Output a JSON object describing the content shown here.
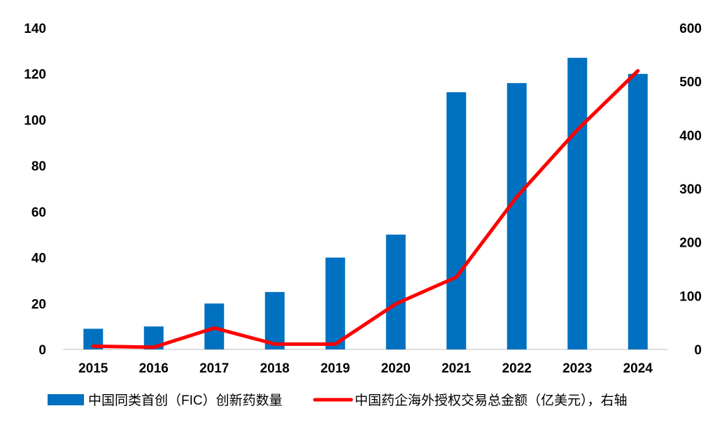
{
  "chart_data": {
    "type": "bar",
    "categories": [
      "2015",
      "2016",
      "2017",
      "2018",
      "2019",
      "2020",
      "2021",
      "2022",
      "2023",
      "2024"
    ],
    "series": [
      {
        "name": "中国同类首创（FIC）创新药数量",
        "type": "bar",
        "axis": "left",
        "color": "#0070C0",
        "values": [
          9,
          10,
          20,
          25,
          40,
          50,
          112,
          116,
          127,
          120
        ]
      },
      {
        "name": "中国药企海外授权交易总金额（亿美元），右轴",
        "type": "line",
        "axis": "right",
        "color": "#FF0000",
        "values": [
          6,
          4,
          40,
          10,
          10,
          85,
          135,
          285,
          410,
          520
        ]
      }
    ],
    "y_left": {
      "lim": [
        0,
        140
      ],
      "ticks": [
        "0",
        "20",
        "40",
        "60",
        "80",
        "100",
        "120",
        "140"
      ]
    },
    "y_right": {
      "lim": [
        0,
        600
      ],
      "ticks": [
        "0",
        "100",
        "200",
        "300",
        "400",
        "500",
        "600"
      ]
    },
    "grid": false,
    "legend_position": "bottom"
  }
}
